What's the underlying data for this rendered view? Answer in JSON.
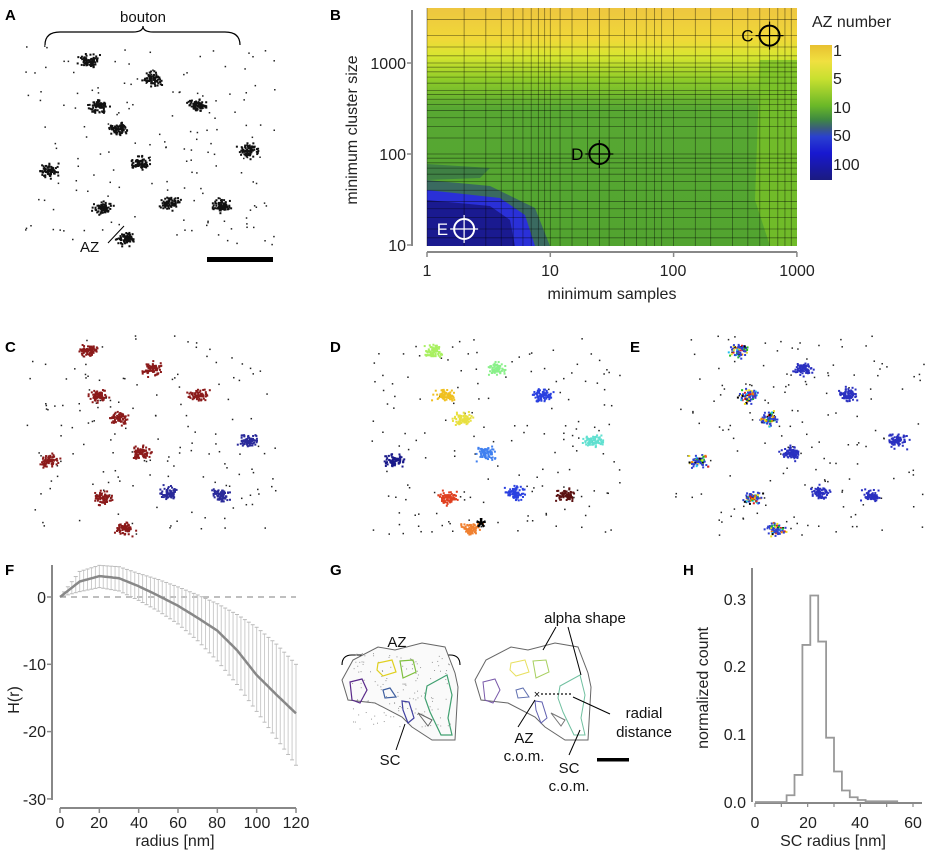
{
  "panel_labels": {
    "A": "A",
    "B": "B",
    "C": "C",
    "D": "D",
    "E": "E",
    "F": "F",
    "G": "G",
    "H": "H"
  },
  "panel_a": {
    "bracket_label": "bouton",
    "az_label": "AZ"
  },
  "panel_d": {
    "asterisk": "*"
  },
  "panel_g": {
    "az_bracket_label": "AZ",
    "sc_label": "SC",
    "alpha_shape_label": "alpha shape",
    "az_com_label": [
      "AZ",
      "c.o.m."
    ],
    "radial_distance_label": [
      "radial",
      "distance"
    ],
    "sc_com_label": [
      "SC",
      "c.o.m."
    ]
  },
  "colors": {
    "panel_c_clusters": [
      "#8b1a1a",
      "#2a2a9a",
      "#111111"
    ],
    "panel_d_clusters": [
      "#a8f060",
      "#8af08a",
      "#f0c020",
      "#e8e040",
      "#2a40e0",
      "#1a1a8a",
      "#e04020",
      "#f08030",
      "#5a1010",
      "#60e0d0",
      "#4080f0"
    ],
    "panel_e_speckles": [
      "#e02020",
      "#20c0f0",
      "#f0e020",
      "#20c020",
      "#000000",
      "#f08000"
    ]
  },
  "chart_data": [
    {
      "panel": "B",
      "type": "heatmap",
      "xlabel": "minimum samples",
      "ylabel": "minimum cluster size",
      "x_scale": "log",
      "y_scale": "log",
      "xlim": [
        1,
        1000
      ],
      "ylim": [
        10,
        4000
      ],
      "x_ticks": [
        "1",
        "10",
        "100",
        "1000"
      ],
      "y_ticks": [
        "10",
        "100",
        "1000"
      ],
      "grid": true,
      "colorbar": {
        "title": "AZ number",
        "ticks": [
          "1",
          "5",
          "10",
          "50",
          "100"
        ],
        "colors": [
          "#e8c030",
          "#f0e040",
          "#d8e830",
          "#a8d828",
          "#70c020",
          "#4a9a30",
          "#3a7050",
          "#2a40c0",
          "#1010e0",
          "#1a1a90"
        ]
      },
      "regions": [
        {
          "description_value": "1",
          "color": "#ecc838"
        },
        {
          "description_value": "5",
          "color": "#b8e030"
        },
        {
          "description_value": "10",
          "color": "#5aaa30"
        },
        {
          "description_value": "50",
          "color": "#2a30d8"
        },
        {
          "description_value": "100",
          "color": "#1a1a90"
        }
      ],
      "markers": [
        {
          "label": "C",
          "min_samples": 600,
          "min_cluster_size": 2000,
          "color": "#000000"
        },
        {
          "label": "D",
          "min_samples": 25,
          "min_cluster_size": 100,
          "color": "#000000"
        },
        {
          "label": "E",
          "min_samples": 2,
          "min_cluster_size": 15,
          "color": "#ffffff"
        }
      ]
    },
    {
      "panel": "F",
      "type": "line",
      "xlabel": "radius [nm]",
      "ylabel": "H(r)",
      "xlim": [
        0,
        120
      ],
      "ylim": [
        -30,
        5
      ],
      "x_ticks": [
        "0",
        "20",
        "40",
        "60",
        "80",
        "100",
        "120"
      ],
      "y_ticks": [
        "0",
        "-10",
        "-20",
        "-30"
      ],
      "reference_line": 0,
      "x": [
        0,
        10,
        20,
        30,
        40,
        50,
        60,
        70,
        80,
        90,
        100,
        110,
        120
      ],
      "mean": [
        0,
        2.3,
        3.1,
        2.8,
        1.6,
        0.2,
        -1.3,
        -3.1,
        -5.0,
        -7.9,
        -11.6,
        -14.5,
        -17.3
      ],
      "lower": [
        0,
        0.8,
        1.4,
        0.9,
        -0.5,
        -2.1,
        -4.0,
        -6.5,
        -9.5,
        -13,
        -17,
        -21,
        -25
      ],
      "upper": [
        0,
        3.8,
        4.7,
        4.5,
        3.5,
        2.6,
        1.5,
        0.3,
        -1.0,
        -2.6,
        -4.5,
        -7,
        -10
      ]
    },
    {
      "panel": "H",
      "type": "bar",
      "xlabel": "SC radius [nm]",
      "ylabel": "normalized count",
      "xlim": [
        0,
        60
      ],
      "ylim": [
        0,
        0.33
      ],
      "x_ticks": [
        "0",
        "20",
        "40",
        "60"
      ],
      "y_ticks": [
        "0.0",
        "0.1",
        "0.2",
        "0.3"
      ],
      "bin_edges": [
        0,
        3,
        6,
        9,
        12,
        15,
        18,
        21,
        24,
        27,
        30,
        33,
        36,
        39,
        42,
        45,
        48,
        51,
        54
      ],
      "values": [
        0,
        0,
        0,
        0,
        0.01,
        0.04,
        0.232,
        0.305,
        0.237,
        0.095,
        0.045,
        0.017,
        0.007,
        0.003,
        0.001,
        0.001,
        0.001,
        0.001
      ]
    }
  ]
}
